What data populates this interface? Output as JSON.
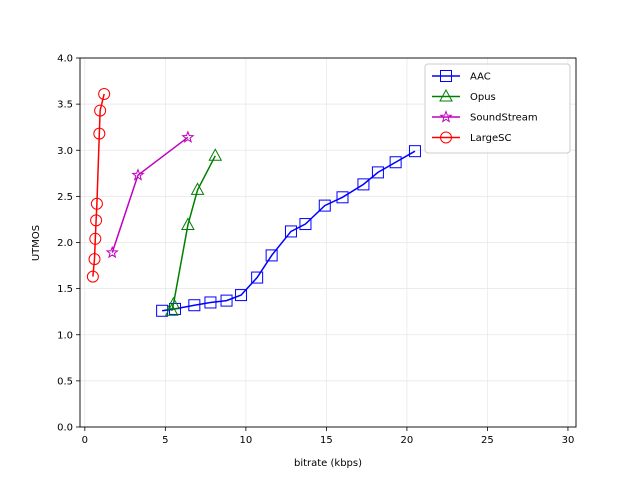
{
  "chart_data": {
    "type": "line",
    "title": "",
    "xlabel": "bitrate (kbps)",
    "ylabel": "UTMOS",
    "xlim": [
      -0.3,
      30.5
    ],
    "ylim": [
      0.0,
      4.0
    ],
    "xticks": [
      "0",
      "5",
      "10",
      "15",
      "20",
      "25",
      "30"
    ],
    "yticks": [
      "0.0",
      "0.5",
      "1.0",
      "1.5",
      "2.0",
      "2.5",
      "3.0",
      "3.5",
      "4.0"
    ],
    "grid": true,
    "legend_position": "top-right",
    "series": [
      {
        "name": "AAC",
        "color": "#0000ff",
        "marker": "square",
        "x": [
          4.8,
          5.6,
          6.8,
          7.8,
          8.8,
          9.7,
          10.7,
          11.6,
          12.8,
          13.7,
          14.9,
          16.0,
          17.3,
          18.2,
          19.3,
          20.5
        ],
        "y": [
          1.26,
          1.28,
          1.32,
          1.35,
          1.37,
          1.43,
          1.62,
          1.86,
          2.12,
          2.2,
          2.4,
          2.49,
          2.63,
          2.76,
          2.87,
          2.99
        ]
      },
      {
        "name": "Opus",
        "color": "#008000",
        "marker": "triangle",
        "x": [
          5.4,
          5.5,
          6.4,
          7.0,
          8.1
        ],
        "y": [
          1.26,
          1.33,
          2.19,
          2.57,
          2.94
        ]
      },
      {
        "name": "SoundStream",
        "color": "#bf00bf",
        "marker": "star",
        "x": [
          1.7,
          3.3,
          6.4
        ],
        "y": [
          1.89,
          2.73,
          3.14
        ]
      },
      {
        "name": "LargeSC",
        "color": "#ff0000",
        "marker": "circle",
        "x": [
          0.5,
          0.6,
          0.65,
          0.7,
          0.75,
          0.9,
          0.95,
          1.2
        ],
        "y": [
          1.63,
          1.82,
          2.04,
          2.24,
          2.42,
          3.18,
          3.43,
          3.61
        ]
      }
    ]
  }
}
